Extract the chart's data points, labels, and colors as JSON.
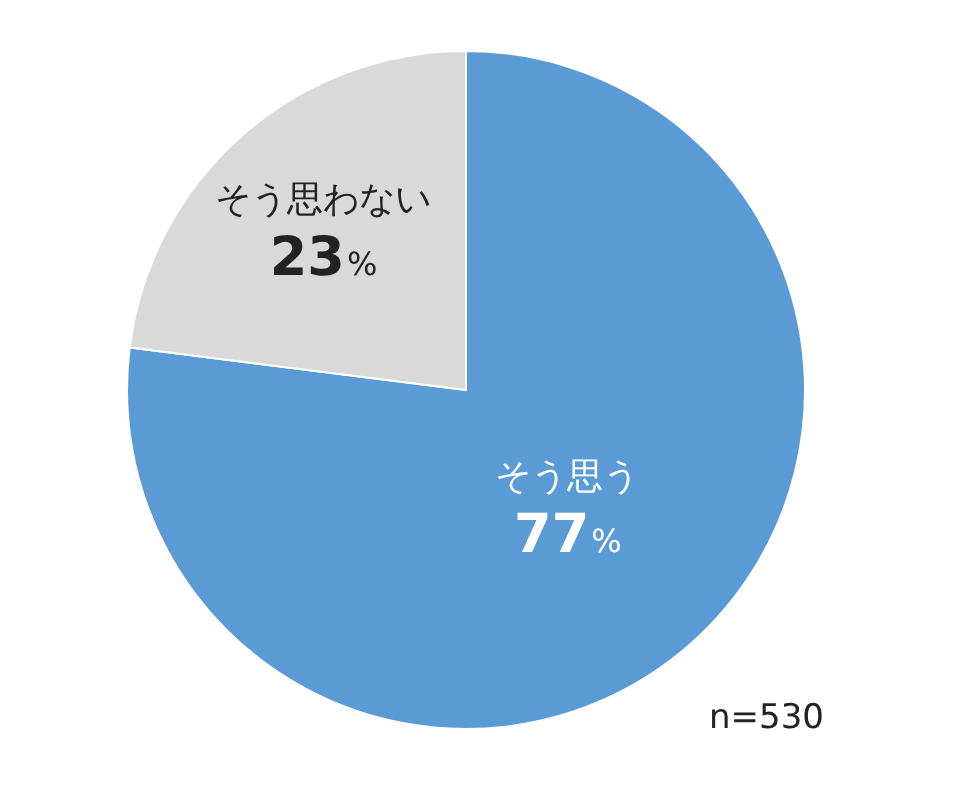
{
  "chart_data": {
    "type": "pie",
    "categories": [
      "そう思う",
      "そう思わない"
    ],
    "values": [
      77,
      23
    ],
    "value_labels": [
      "77%",
      "23%"
    ],
    "colors": [
      "#5b9bd5",
      "#d9d9d9"
    ],
    "legend": false,
    "annotations": [
      "n=530"
    ]
  }
}
